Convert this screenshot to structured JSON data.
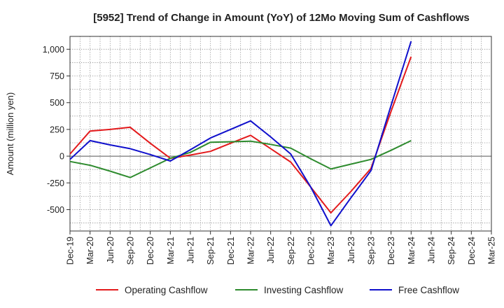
{
  "chart_data": {
    "type": "line",
    "title": "[5952]  Trend of Change in Amount (YoY) of 12Mo Moving Sum of Cashflows",
    "xlabel": "",
    "ylabel": "Amount (million yen)",
    "ylim": [
      -700,
      1120
    ],
    "yticks": [
      -500,
      -250,
      0,
      250,
      500,
      750,
      1000
    ],
    "ytick_labels": [
      "-500",
      "-250",
      "0",
      "250",
      "500",
      "750",
      "1,000"
    ],
    "grid": true,
    "legend_position": "bottom",
    "categories": [
      "Dec-19",
      "Mar-20",
      "Jun-20",
      "Sep-20",
      "Dec-20",
      "Mar-21",
      "Jun-21",
      "Sep-21",
      "Dec-21",
      "Mar-22",
      "Jun-22",
      "Sep-22",
      "Dec-22",
      "Mar-23",
      "Jun-23",
      "Sep-23",
      "Dec-23",
      "Mar-24",
      "Jun-24",
      "Sep-24",
      "Dec-24",
      "Mar-25"
    ],
    "series": [
      {
        "name": "Operating Cashflow",
        "color": "#e31a1c",
        "values": [
          20,
          235,
          250,
          270,
          120,
          -20,
          10,
          45,
          120,
          195,
          70,
          -55,
          -290,
          -530,
          -330,
          -115,
          420,
          930,
          null,
          null,
          null,
          null
        ]
      },
      {
        "name": "Investing Cashflow",
        "color": "#2e8b2e",
        "values": [
          -50,
          -85,
          -140,
          -200,
          -110,
          -20,
          35,
          130,
          135,
          140,
          110,
          75,
          -25,
          -120,
          -75,
          -30,
          55,
          145,
          null,
          null,
          null,
          null
        ]
      },
      {
        "name": "Free Cashflow",
        "color": "#1010cc",
        "values": [
          -30,
          145,
          105,
          70,
          15,
          -45,
          60,
          170,
          250,
          330,
          180,
          20,
          -290,
          -650,
          -390,
          -135,
          475,
          1075,
          null,
          null,
          null,
          null
        ]
      }
    ]
  }
}
